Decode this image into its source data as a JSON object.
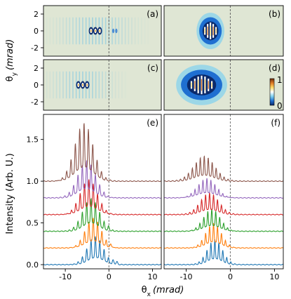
{
  "chart_data": [
    {
      "panel": "a",
      "type": "heatmap",
      "label": "(a)",
      "xlim": [
        -15,
        12
      ],
      "ylim": [
        -3,
        3
      ],
      "yticks": [
        "2",
        "0",
        "-2"
      ],
      "grating_center": -3.0,
      "grating_fringe_period": 0.75,
      "grating_fringe_extent": 12,
      "bright_spots_x": [
        -4.1,
        -3.1,
        -2.1
      ],
      "side_spots_x": [
        1.0,
        1.7
      ],
      "dashed_x": 0
    },
    {
      "panel": "b",
      "type": "heatmap",
      "label": "(b)",
      "xlim": [
        -15,
        12
      ],
      "ylim": [
        -3,
        3
      ],
      "blob_center": [
        -4.5,
        0
      ],
      "blob_width_x": 3.0,
      "blob_height_y": 0.9,
      "fringe_count": 5,
      "dashed_x": 0
    },
    {
      "panel": "c",
      "type": "heatmap",
      "label": "(c)",
      "xlim": [
        -15,
        12
      ],
      "ylim": [
        -3,
        3
      ],
      "yticks": [
        "2",
        "0",
        "-2"
      ],
      "grating_center": -6.0,
      "grating_fringe_period": 0.75,
      "grating_fringe_extent": 10,
      "bright_spots_x": [
        -7.0,
        -6.0,
        -5.0
      ],
      "side_spots_x": [],
      "dashed_x": 0
    },
    {
      "panel": "d",
      "type": "heatmap",
      "label": "(d)",
      "xlim": [
        -15,
        12
      ],
      "ylim": [
        -3,
        3
      ],
      "blob_center": [
        -6.5,
        0
      ],
      "blob_width_x": 5.5,
      "blob_height_y": 1.0,
      "fringe_count": 7,
      "dashed_x": 0,
      "colorbar": {
        "max_label": "1",
        "min_label": "0",
        "colors": [
          "#0b2a6b",
          "#1f6fd1",
          "#7fd0f0",
          "#ffffff",
          "#ffd966",
          "#e07b24",
          "#6b2a0b"
        ]
      }
    },
    {
      "panel": "e",
      "type": "line",
      "label": "(e)",
      "xlim": [
        -15,
        12
      ],
      "ylim": [
        -0.05,
        1.8
      ],
      "xticks": [
        "-10",
        "0",
        "10"
      ],
      "xtick_values": [
        -10,
        0,
        10
      ],
      "yticks": [
        "0.0",
        "0.5",
        "1.0",
        "1.5"
      ],
      "ytick_values": [
        0.0,
        0.5,
        1.0,
        1.5
      ],
      "ylabel": "Intensity (Arb. U.)",
      "dashed_x": 0,
      "series": [
        {
          "offset": 0.0,
          "color": "#1f77b4",
          "center": -3.1,
          "envelope_width": 2.6,
          "fringe_period": 1.0,
          "amplitude": 0.34,
          "side_peaks_x": [
            1.0,
            1.8
          ],
          "side_amp": 0.03
        },
        {
          "offset": 0.2,
          "color": "#ff7f0e",
          "center": -3.6,
          "envelope_width": 2.6,
          "fringe_period": 1.0,
          "amplitude": 0.36,
          "side_peaks_x": [
            0.5
          ],
          "side_amp": 0.02
        },
        {
          "offset": 0.4,
          "color": "#2ca02c",
          "center": -4.1,
          "envelope_width": 2.7,
          "fringe_period": 1.0,
          "amplitude": 0.4,
          "side_peaks_x": [
            0.0
          ],
          "side_amp": 0.02
        },
        {
          "offset": 0.6,
          "color": "#d62728",
          "center": -4.6,
          "envelope_width": 2.8,
          "fringe_period": 1.0,
          "amplitude": 0.42,
          "side_peaks_x": [],
          "side_amp": 0.0
        },
        {
          "offset": 0.8,
          "color": "#9467bd",
          "center": -5.1,
          "envelope_width": 2.9,
          "fringe_period": 1.0,
          "amplitude": 0.45,
          "side_peaks_x": [],
          "side_amp": 0.0
        },
        {
          "offset": 1.0,
          "color": "#8c564b",
          "center": -5.7,
          "envelope_width": 3.0,
          "fringe_period": 1.0,
          "amplitude": 0.7,
          "side_peaks_x": [],
          "side_amp": 0.0
        }
      ]
    },
    {
      "panel": "f",
      "type": "line",
      "label": "(f)",
      "xlim": [
        -15,
        12
      ],
      "ylim": [
        -0.05,
        1.8
      ],
      "xticks": [
        "-10",
        "0",
        "10"
      ],
      "xtick_values": [
        -10,
        0,
        10
      ],
      "dashed_x": 0,
      "series": [
        {
          "offset": 0.0,
          "color": "#1f77b4",
          "center": -3.5,
          "envelope_width": 2.4,
          "fringe_period": 0.9,
          "amplitude": 0.3
        },
        {
          "offset": 0.2,
          "color": "#ff7f0e",
          "center": -3.8,
          "envelope_width": 2.5,
          "fringe_period": 0.9,
          "amplitude": 0.3
        },
        {
          "offset": 0.4,
          "color": "#2ca02c",
          "center": -4.2,
          "envelope_width": 2.7,
          "fringe_period": 0.9,
          "amplitude": 0.27
        },
        {
          "offset": 0.6,
          "color": "#d62728",
          "center": -4.7,
          "envelope_width": 2.9,
          "fringe_period": 0.9,
          "amplitude": 0.26
        },
        {
          "offset": 0.8,
          "color": "#9467bd",
          "center": -5.3,
          "envelope_width": 3.0,
          "fringe_period": 0.9,
          "amplitude": 0.24
        },
        {
          "offset": 1.0,
          "color": "#8c564b",
          "center": -5.9,
          "envelope_width": 3.3,
          "fringe_period": 0.9,
          "amplitude": 0.3
        }
      ]
    }
  ],
  "axis_labels": {
    "x_prefix": "θ",
    "x_sub": "x",
    "x_unit": "(mrad)",
    "y_prefix": "θ",
    "y_sub": "y",
    "y_unit": "(mrad)"
  }
}
